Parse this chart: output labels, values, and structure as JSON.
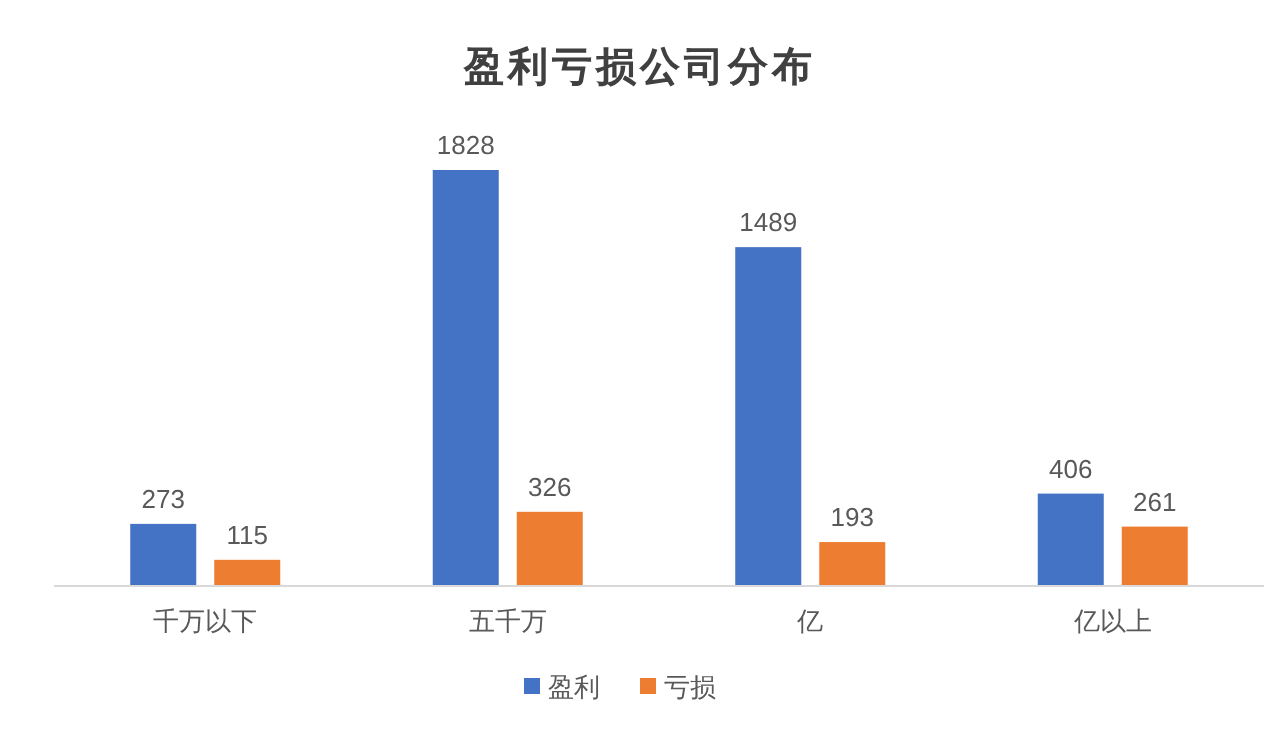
{
  "chart_data": {
    "type": "bar",
    "title": "盈利亏损公司分布",
    "categories": [
      "千万以下",
      "五千万",
      "亿",
      "亿以上"
    ],
    "series": [
      {
        "name": "盈利",
        "color": "#4472c4",
        "values": [
          273,
          1828,
          1489,
          406
        ]
      },
      {
        "name": "亏损",
        "color": "#ed7d31",
        "values": [
          115,
          326,
          193,
          261
        ]
      }
    ],
    "data_labels": true,
    "legend": "bottom"
  }
}
